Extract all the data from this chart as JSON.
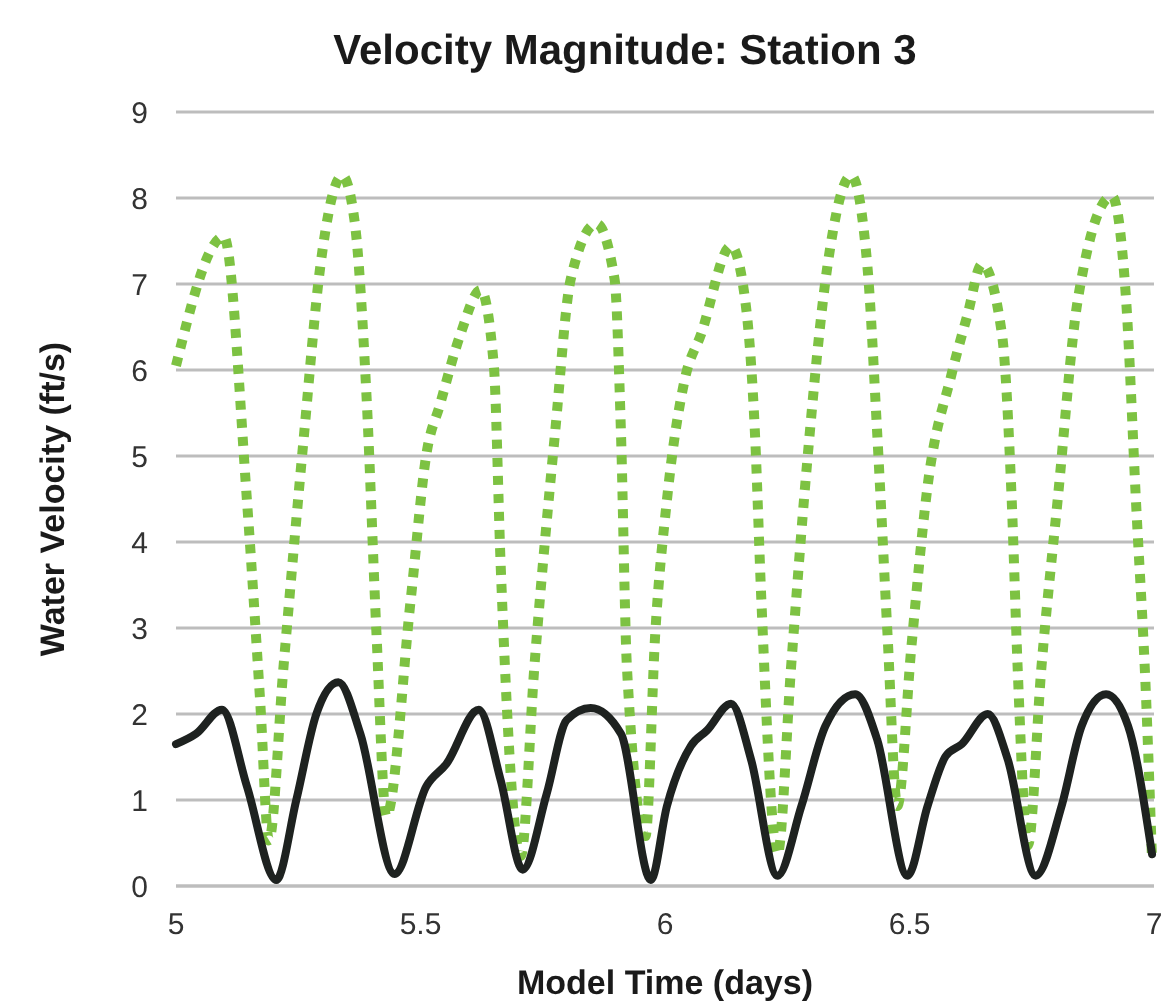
{
  "chart_data": {
    "type": "line",
    "title": "Velocity Magnitude: Station 3",
    "xlabel": "Model Time (days)",
    "ylabel": "Water Velocity (ft/s)",
    "xlim": [
      5,
      7
    ],
    "xticks": [
      5,
      5.5,
      6,
      6.5,
      7
    ],
    "ylim": [
      0,
      9
    ],
    "yticks": [
      0,
      1,
      2,
      3,
      4,
      5,
      6,
      7,
      8,
      9
    ],
    "grid": "y",
    "series": [
      {
        "color": "#7dc242",
        "line_style": "dotted",
        "x": [
          5.0,
          5.098,
          5.145,
          5.172,
          5.19,
          5.22,
          5.262,
          5.295,
          5.34,
          5.365,
          5.39,
          5.41,
          5.43,
          5.48,
          5.512,
          5.54,
          5.582,
          5.623,
          5.65,
          5.664,
          5.705,
          5.733,
          5.775,
          5.807,
          5.86,
          5.897,
          5.91,
          5.922,
          5.96,
          5.98,
          6.004,
          6.04,
          6.074,
          6.135,
          6.164,
          6.184,
          6.197,
          6.23,
          6.258,
          6.29,
          6.332,
          6.381,
          6.414,
          6.434,
          6.455,
          6.475,
          6.504,
          6.537,
          6.586,
          6.619,
          6.648,
          6.689,
          6.709,
          6.721,
          6.742,
          6.77,
          6.803,
          6.844,
          6.914,
          6.943,
          6.963,
          6.984,
          6.996
        ],
        "values": [
          6.05,
          7.55,
          4.49,
          2.16,
          0.53,
          2.56,
          5.26,
          7.2,
          8.26,
          7.74,
          5.65,
          2.93,
          0.81,
          3.33,
          5.02,
          5.6,
          6.42,
          6.93,
          6.05,
          3.72,
          0.35,
          2.56,
          5.26,
          7.05,
          7.7,
          7.05,
          5.26,
          2.56,
          0.58,
          2.93,
          4.49,
          5.88,
          6.42,
          7.44,
          6.81,
          5.26,
          3.33,
          0.37,
          2.56,
          4.88,
          7.2,
          8.26,
          7.2,
          5.26,
          2.93,
          0.93,
          2.79,
          4.65,
          5.95,
          6.65,
          7.23,
          6.42,
          4.49,
          2.56,
          0.47,
          2.56,
          4.49,
          6.81,
          8.02,
          6.81,
          4.49,
          2.16,
          0.3
        ]
      },
      {
        "color": "#1e2220",
        "line_style": "solid",
        "x": [
          5.0,
          5.041,
          5.094,
          5.145,
          5.205,
          5.246,
          5.287,
          5.332,
          5.377,
          5.447,
          5.512,
          5.553,
          5.619,
          5.664,
          5.709,
          5.758,
          5.799,
          5.848,
          5.91,
          5.971,
          6.004,
          6.053,
          6.086,
          6.135,
          6.176,
          6.23,
          6.279,
          6.328,
          6.389,
          6.434,
          6.496,
          6.537,
          6.574,
          6.607,
          6.66,
          6.701,
          6.758,
          6.811,
          6.852,
          6.902,
          6.947,
          6.996
        ],
        "values": [
          1.65,
          1.77,
          2.05,
          1.16,
          0.07,
          1.0,
          2.0,
          2.37,
          1.77,
          0.14,
          1.16,
          1.42,
          2.05,
          1.23,
          0.19,
          1.07,
          1.93,
          2.07,
          1.77,
          0.07,
          0.93,
          1.63,
          1.81,
          2.12,
          1.47,
          0.12,
          0.93,
          1.86,
          2.23,
          1.7,
          0.12,
          0.93,
          1.51,
          1.65,
          2.0,
          1.47,
          0.12,
          0.93,
          1.86,
          2.23,
          1.86,
          0.37
        ]
      }
    ]
  }
}
